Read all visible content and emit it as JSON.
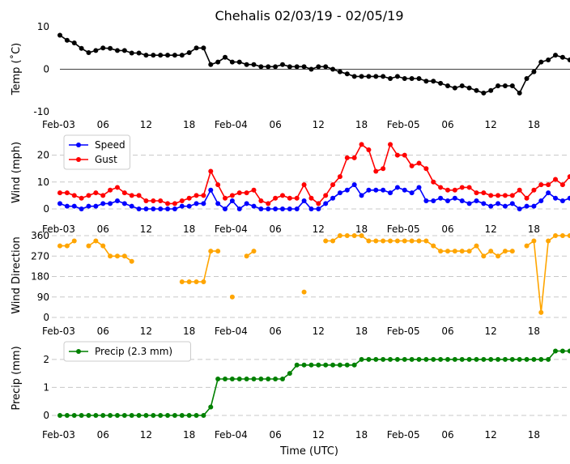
{
  "chart_data": {
    "type": "line",
    "title": "Chehalis 02/03/19 - 02/05/19",
    "xlabel": "Time (UTC)",
    "x_hours": [
      0,
      1,
      2,
      3,
      4,
      5,
      6,
      7,
      8,
      9,
      10,
      11,
      12,
      13,
      14,
      15,
      16,
      17,
      18,
      19,
      20,
      21,
      22,
      23,
      24,
      25,
      26,
      27,
      28,
      29,
      30,
      31,
      32,
      33,
      34,
      35,
      36,
      37,
      38,
      39,
      40,
      41,
      42,
      43,
      44,
      45,
      46,
      47,
      48,
      49,
      50,
      51,
      52,
      53,
      54,
      55,
      56,
      57,
      58,
      59,
      60,
      61,
      62,
      63,
      64,
      65,
      66,
      67,
      68,
      69,
      70,
      71
    ],
    "x_tick_labels": [
      {
        "hour": 0,
        "label": "Feb-03"
      },
      {
        "hour": 6,
        "label": "06"
      },
      {
        "hour": 12,
        "label": "12"
      },
      {
        "hour": 18,
        "label": "18"
      },
      {
        "hour": 24,
        "label": "Feb-04"
      },
      {
        "hour": 30,
        "label": "06"
      },
      {
        "hour": 36,
        "label": "12"
      },
      {
        "hour": 42,
        "label": "18"
      },
      {
        "hour": 48,
        "label": "Feb-05"
      },
      {
        "hour": 54,
        "label": "06"
      },
      {
        "hour": 60,
        "label": "12"
      },
      {
        "hour": 66,
        "label": "18"
      }
    ],
    "panels": [
      {
        "id": "temp",
        "ylabel": "Temp (˚C)",
        "ylim": [
          -10,
          10
        ],
        "yticks": [
          -10,
          0,
          10
        ],
        "zero_line": true,
        "grid": false,
        "series": [
          {
            "name": "Temp",
            "color": "#000000",
            "values": [
              8,
              6.8,
              6.2,
              4.9,
              3.9,
              4.4,
              5,
              4.9,
              4.4,
              4.4,
              3.8,
              3.8,
              3.3,
              3.3,
              3.3,
              3.3,
              3.3,
              3.3,
              3.9,
              5,
              5,
              1.1,
              1.7,
              2.8,
              1.7,
              1.7,
              1.1,
              1.1,
              0.6,
              0.6,
              0.6,
              1.1,
              0.6,
              0.6,
              0.6,
              0,
              0.6,
              0.6,
              0,
              -0.6,
              -1.1,
              -1.7,
              -1.7,
              -1.7,
              -1.7,
              -1.7,
              -2.2,
              -1.7,
              -2.2,
              -2.2,
              -2.2,
              -2.8,
              -2.8,
              -3.3,
              -3.9,
              -4.4,
              -3.9,
              -4.4,
              -5,
              -5.6,
              -5,
              -3.9,
              -3.9,
              -3.9,
              -5.6,
              -2.2,
              -0.6,
              1.7,
              2.2,
              3.3,
              2.8,
              2.2
            ]
          }
        ]
      },
      {
        "id": "wind",
        "ylabel": "Wind (mph)",
        "ylim": [
          0,
          25
        ],
        "yticks": [
          0,
          10,
          20
        ],
        "grid": true,
        "legend": "top-left",
        "series": [
          {
            "name": "Speed",
            "color": "#0000ff",
            "values": [
              2,
              1,
              1,
              0,
              1,
              1,
              2,
              2,
              3,
              2,
              1,
              0,
              0,
              0,
              0,
              0,
              0,
              1,
              1,
              2,
              2,
              7,
              2,
              0,
              3,
              0,
              2,
              1,
              0,
              0,
              0,
              0,
              0,
              0,
              3,
              0,
              0,
              2,
              4,
              6,
              7,
              9,
              5,
              7,
              7,
              7,
              6,
              8,
              7,
              6,
              8,
              3,
              3,
              4,
              3,
              4,
              3,
              2,
              3,
              2,
              1,
              2,
              1,
              2,
              0,
              1,
              1,
              3,
              6,
              4,
              3,
              4
            ]
          },
          {
            "name": "Gust",
            "color": "#ff0000",
            "values": [
              6,
              6,
              5,
              4,
              5,
              6,
              5,
              7,
              8,
              6,
              5,
              5,
              3,
              3,
              3,
              2,
              2,
              3,
              4,
              5,
              5,
              14,
              9,
              4,
              5,
              6,
              6,
              7,
              3,
              2,
              4,
              5,
              4,
              4,
              9,
              4,
              2,
              5,
              9,
              12,
              19,
              19,
              24,
              22,
              14,
              15,
              24,
              20,
              20,
              16,
              17,
              15,
              10,
              8,
              7,
              7,
              8,
              8,
              6,
              6,
              5,
              5,
              5,
              5,
              7,
              4,
              7,
              9,
              9,
              11,
              9,
              12
            ]
          }
        ]
      },
      {
        "id": "direction",
        "ylabel": "Wind Direction",
        "ylim": [
          0,
          360
        ],
        "yticks": [
          0,
          90,
          180,
          270,
          360
        ],
        "grid": true,
        "series": [
          {
            "name": "Direction",
            "color": "#ffa500",
            "values": [
              315,
              315,
              337,
              null,
              315,
              337,
              315,
              270,
              270,
              270,
              247,
              null,
              null,
              null,
              null,
              null,
              null,
              157,
              157,
              157,
              157,
              292,
              292,
              null,
              90,
              null,
              270,
              292,
              null,
              null,
              null,
              null,
              null,
              null,
              112,
              null,
              null,
              337,
              337,
              360,
              360,
              360,
              360,
              337,
              337,
              337,
              337,
              337,
              337,
              337,
              337,
              337,
              315,
              292,
              292,
              292,
              292,
              292,
              315,
              270,
              292,
              270,
              292,
              292,
              null,
              315,
              337,
              22,
              337,
              360,
              360,
              360
            ]
          }
        ]
      },
      {
        "id": "precip",
        "ylabel": "Precip (mm)",
        "ylim": [
          0,
          2.4
        ],
        "yticks": [
          0,
          1,
          2
        ],
        "grid": true,
        "legend": "top-left",
        "series": [
          {
            "name": "Precip (2.3 mm)",
            "color": "#008000",
            "values": [
              0,
              0,
              0,
              0,
              0,
              0,
              0,
              0,
              0,
              0,
              0,
              0,
              0,
              0,
              0,
              0,
              0,
              0,
              0,
              0,
              0,
              0.3,
              1.3,
              1.3,
              1.3,
              1.3,
              1.3,
              1.3,
              1.3,
              1.3,
              1.3,
              1.3,
              1.5,
              1.8,
              1.8,
              1.8,
              1.8,
              1.8,
              1.8,
              1.8,
              1.8,
              1.8,
              2,
              2,
              2,
              2,
              2,
              2,
              2,
              2,
              2,
              2,
              2,
              2,
              2,
              2,
              2,
              2,
              2,
              2,
              2,
              2,
              2,
              2,
              2,
              2,
              2,
              2,
              2,
              2.3,
              2.3,
              2.3
            ]
          }
        ]
      }
    ]
  }
}
